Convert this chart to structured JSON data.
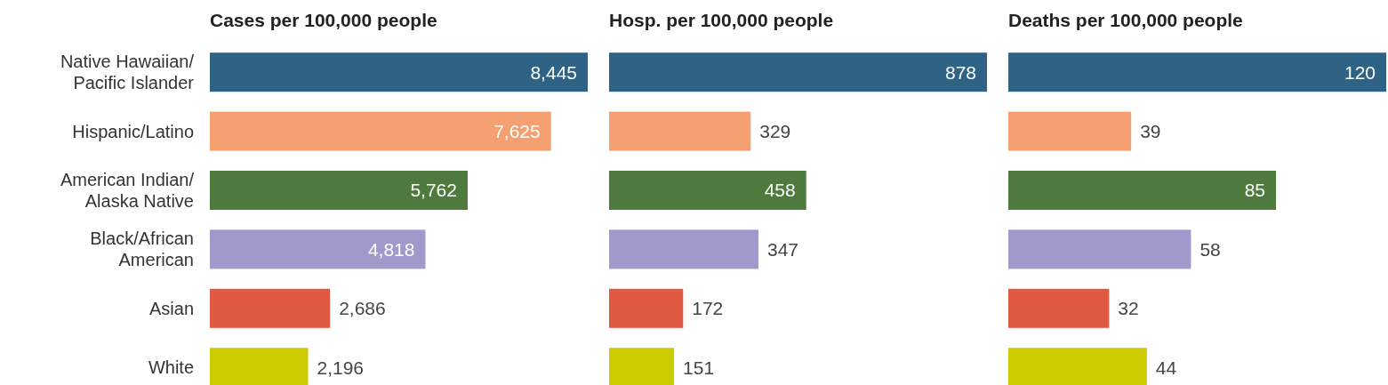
{
  "chart_data": [
    {
      "type": "bar",
      "orientation": "horizontal",
      "title": "Cases per 100,000 people",
      "categories": [
        "Native Hawaiian/Pacific Islander",
        "Hispanic/Latino",
        "American Indian/Alaska Native",
        "Black/African American",
        "Asian",
        "White"
      ],
      "values": [
        8445,
        7625,
        5762,
        4818,
        2686,
        2196
      ],
      "value_labels": [
        "8,445",
        "7,625",
        "5,762",
        "4,818",
        "2,686",
        "2,196"
      ],
      "colors": [
        "#2e6386",
        "#f4a070",
        "#4e7a3e",
        "#a199cb",
        "#e05a41",
        "#cccc00"
      ],
      "tick_labels": "y"
    },
    {
      "type": "bar",
      "orientation": "horizontal",
      "title": "Hosp. per 100,000 people",
      "categories": [
        null,
        null,
        null,
        null,
        null,
        null
      ],
      "values": [
        878,
        329,
        458,
        347,
        172,
        151
      ],
      "colors": [
        "#2e6386",
        "#f4a070",
        "#4e7a3e",
        "#a199cb",
        "#e05a41",
        "#cccc00"
      ],
      "data_labels": true,
      "tick_labels": false
    },
    {
      "type": "bar",
      "orientation": "horizontal",
      "title": "Deaths per 100,000 people",
      "categories": [
        null,
        null,
        null,
        null,
        null,
        null
      ],
      "values": [
        120,
        39,
        85,
        58,
        32,
        44
      ],
      "colors": [
        "#2e6386",
        "#f4a070",
        "#4e7a3e",
        "#a199cb",
        "#e05a41",
        "#cccc00"
      ],
      "data_labels": true,
      "tick_labels": false
    }
  ]
}
